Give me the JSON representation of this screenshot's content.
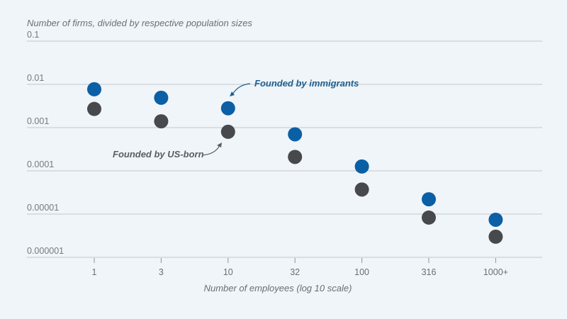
{
  "chart_data": {
    "type": "scatter",
    "title": "",
    "ylabel": "Number of firms, divided by respective population sizes",
    "xlabel": "Number of employees (log 10 scale)",
    "y_scale": "log",
    "ylim": [
      1e-06,
      0.1
    ],
    "y_ticks": [
      "0.1",
      "0.01",
      "0.001",
      "0.0001",
      "0.00001",
      "0.000001"
    ],
    "y_tick_values": [
      0.1,
      0.01,
      0.001,
      0.0001,
      1e-05,
      1e-06
    ],
    "categories": [
      "1",
      "3",
      "10",
      "32",
      "100",
      "316",
      "1000+"
    ],
    "grid": true,
    "series": [
      {
        "name": "Founded by immigrants",
        "color": "#0b5fa5",
        "values": [
          0.0077,
          0.0049,
          0.0028,
          0.0007,
          0.000126,
          2.2e-05,
          7.4e-06
        ]
      },
      {
        "name": "Founded by US-born",
        "color": "#48494d",
        "values": [
          0.0027,
          0.0014,
          0.0008,
          0.00021,
          3.7e-05,
          8.3e-06,
          3e-06
        ]
      }
    ],
    "annotations": [
      {
        "text": "Founded by immigrants",
        "series": 0,
        "points_to": "10"
      },
      {
        "text": "Founded by US-born",
        "series": 1,
        "points_to": "10"
      }
    ]
  }
}
